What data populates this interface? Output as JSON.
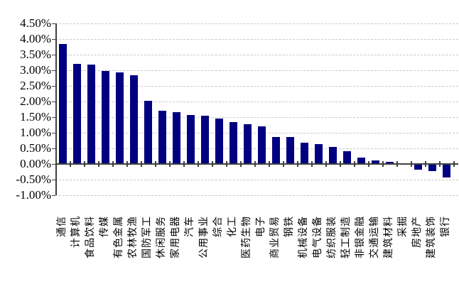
{
  "chart_data": {
    "type": "bar",
    "title": "",
    "xlabel": "",
    "ylabel": "",
    "categories": [
      "通信",
      "计算机",
      "食品饮料",
      "传媒",
      "有色金属",
      "农林牧渔",
      "国防军工",
      "休闲服务",
      "家用电器",
      "汽车",
      "公用事业",
      "综合",
      "化工",
      "医药生物",
      "电子",
      "商业贸易",
      "钢铁",
      "机械设备",
      "电气设备",
      "纺织服装",
      "轻工制造",
      "非银金融",
      "交通运输",
      "建筑材料",
      "采掘",
      "房地产",
      "建筑装饰",
      "银行"
    ],
    "values": [
      3.85,
      3.2,
      3.18,
      2.97,
      2.94,
      2.85,
      2.03,
      1.7,
      1.66,
      1.57,
      1.55,
      1.46,
      1.35,
      1.28,
      1.2,
      0.87,
      0.86,
      0.69,
      0.64,
      0.55,
      0.42,
      0.21,
      0.11,
      0.06,
      0.01,
      -0.18,
      -0.22,
      -0.43
    ],
    "value_unit": "%",
    "ylim": [
      -1.0,
      4.5
    ],
    "ytick_step": 0.5,
    "ytick_labels": [
      "4.50%",
      "4.00%",
      "3.50%",
      "3.00%",
      "2.50%",
      "2.00%",
      "1.50%",
      "1.00%",
      "0.50%",
      "0.00%",
      "-0.50%",
      "-1.00%"
    ],
    "grid": "horizontal-dashed",
    "legend": "none",
    "colors": {
      "bar": "#000080",
      "axis": "#404040",
      "gridline": "#c9c9c9",
      "background": "#ffffff",
      "text": "#000000"
    }
  }
}
